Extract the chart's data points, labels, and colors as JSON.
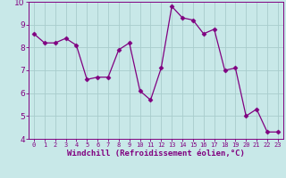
{
  "x": [
    0,
    1,
    2,
    3,
    4,
    5,
    6,
    7,
    8,
    9,
    10,
    11,
    12,
    13,
    14,
    15,
    16,
    17,
    18,
    19,
    20,
    21,
    22,
    23
  ],
  "y": [
    8.6,
    8.2,
    8.2,
    8.4,
    8.1,
    6.6,
    6.7,
    6.7,
    7.9,
    8.2,
    6.1,
    5.7,
    7.1,
    9.8,
    9.3,
    9.2,
    8.6,
    8.8,
    7.0,
    7.1,
    5.0,
    5.3,
    4.3,
    4.3
  ],
  "line_color": "#800080",
  "marker": "D",
  "marker_size": 2.5,
  "bg_color": "#c8e8e8",
  "grid_color": "#a8cccc",
  "xlabel": "Windchill (Refroidissement éolien,°C)",
  "xlabel_fontsize": 6.5,
  "tick_fontsize": 6.5,
  "ylim": [
    4,
    10
  ],
  "xlim": [
    -0.5,
    23.5
  ],
  "yticks": [
    4,
    5,
    6,
    7,
    8,
    9,
    10
  ],
  "xticks": [
    0,
    1,
    2,
    3,
    4,
    5,
    6,
    7,
    8,
    9,
    10,
    11,
    12,
    13,
    14,
    15,
    16,
    17,
    18,
    19,
    20,
    21,
    22,
    23
  ]
}
